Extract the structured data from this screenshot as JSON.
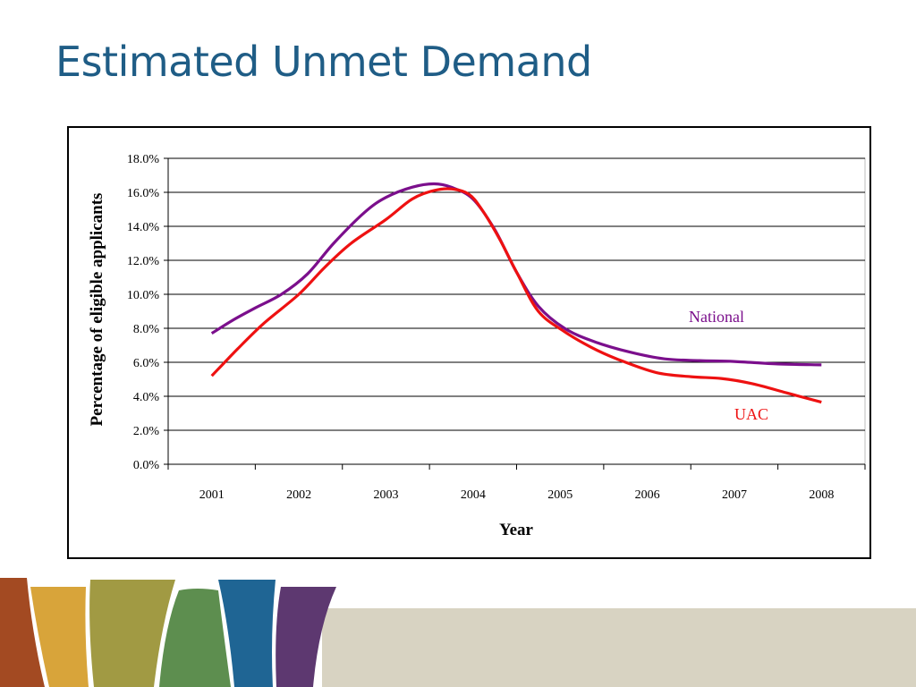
{
  "slide": {
    "title": "Estimated Unmet Demand"
  },
  "colors": {
    "title": "#1f5d86",
    "national": "#7b0f8c",
    "uac": "#ee1111",
    "band_rust": "#a34a22",
    "band_gold": "#d8a43a",
    "band_olive": "#a19a43",
    "band_green": "#5d8e4f",
    "band_blue": "#1f6594",
    "band_purple": "#5d3870",
    "band_beige": "#d8d3c2"
  },
  "chart_data": {
    "type": "line",
    "title": "",
    "xlabel": "Year",
    "ylabel": "Percentage of eligible applicants",
    "categories": [
      "2001",
      "2002",
      "2003",
      "2004",
      "2005",
      "2006",
      "2007",
      "2008"
    ],
    "x_range": [
      2000.5,
      2008.5
    ],
    "ylim": [
      0,
      18
    ],
    "y_ticks": [
      0,
      2,
      4,
      6,
      8,
      10,
      12,
      14,
      16,
      18
    ],
    "y_tick_labels": [
      "0.0%",
      "2.0%",
      "4.0%",
      "6.0%",
      "8.0%",
      "10.0%",
      "12.0%",
      "14.0%",
      "16.0%",
      "18.0%"
    ],
    "grid": true,
    "series": [
      {
        "name": "National",
        "color": "#7b0f8c",
        "points": [
          [
            2001,
            7.7
          ],
          [
            2001.25,
            8.5
          ],
          [
            2001.5,
            9.2
          ],
          [
            2001.8,
            10.0
          ],
          [
            2002.1,
            11.2
          ],
          [
            2002.4,
            13.0
          ],
          [
            2002.75,
            14.8
          ],
          [
            2003,
            15.7
          ],
          [
            2003.3,
            16.3
          ],
          [
            2003.55,
            16.5
          ],
          [
            2003.75,
            16.3
          ],
          [
            2004.0,
            15.6
          ],
          [
            2004.25,
            13.8
          ],
          [
            2004.5,
            11.3
          ],
          [
            2004.75,
            9.3
          ],
          [
            2005.05,
            8.0
          ],
          [
            2005.4,
            7.2
          ],
          [
            2005.8,
            6.6
          ],
          [
            2006.2,
            6.2
          ],
          [
            2006.6,
            6.1
          ],
          [
            2007.0,
            6.05
          ],
          [
            2007.5,
            5.9
          ],
          [
            2008.0,
            5.85
          ]
        ]
      },
      {
        "name": "UAC",
        "color": "#ee1111",
        "points": [
          [
            2001,
            5.2
          ],
          [
            2001.3,
            6.8
          ],
          [
            2001.6,
            8.3
          ],
          [
            2002.0,
            10.0
          ],
          [
            2002.3,
            11.6
          ],
          [
            2002.6,
            13.0
          ],
          [
            2003.0,
            14.4
          ],
          [
            2003.3,
            15.6
          ],
          [
            2003.55,
            16.1
          ],
          [
            2003.75,
            16.2
          ],
          [
            2003.95,
            15.9
          ],
          [
            2004.1,
            15.0
          ],
          [
            2004.3,
            13.3
          ],
          [
            2004.5,
            11.3
          ],
          [
            2004.75,
            9.0
          ],
          [
            2005.05,
            7.8
          ],
          [
            2005.35,
            6.9
          ],
          [
            2005.65,
            6.2
          ],
          [
            2006.1,
            5.4
          ],
          [
            2006.5,
            5.15
          ],
          [
            2006.85,
            5.05
          ],
          [
            2007.2,
            4.75
          ],
          [
            2007.6,
            4.2
          ],
          [
            2008.0,
            3.65
          ]
        ]
      }
    ],
    "series_labels": [
      {
        "text": "National",
        "color": "#7b0f8c"
      },
      {
        "text": "UAC",
        "color": "#ee1111"
      }
    ]
  }
}
